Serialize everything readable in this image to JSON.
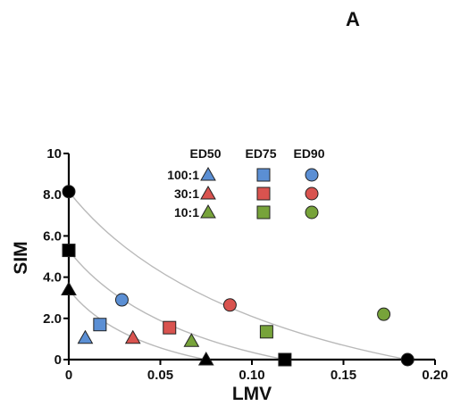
{
  "panel_label": "A",
  "chart_data": {
    "type": "scatter",
    "xlabel": "LMV",
    "ylabel": "SIM",
    "xlim": [
      0,
      0.2
    ],
    "ylim": [
      0,
      10
    ],
    "x_ticks": [
      0,
      0.05,
      0.1,
      0.15,
      0.2
    ],
    "x_tick_labels": [
      "0",
      "0.05",
      "0.10",
      "0.15",
      "0.20"
    ],
    "y_ticks": [
      0,
      2,
      4,
      6,
      8,
      10
    ],
    "y_tick_labels": [
      "0",
      "2.0",
      "4.0",
      "6.0",
      "8.0",
      "10"
    ],
    "grid": false,
    "legend": {
      "placement": "top-center",
      "column_headers": [
        "ED50",
        "ED75",
        "ED90"
      ],
      "row_labels": [
        "100:1",
        "30:1",
        "10:1"
      ]
    },
    "colors": {
      "100:1": "#5b8fd4",
      "30:1": "#d9534f",
      "10:1": "#77a33a",
      "isobole": "#b9b9b9"
    },
    "markers": {
      "ED50": "triangle",
      "ED75": "square",
      "ED90": "circle"
    },
    "series": [
      {
        "name": "100:1",
        "effect": "ED50",
        "x": 0.009,
        "y": 1.05
      },
      {
        "name": "100:1",
        "effect": "ED75",
        "x": 0.017,
        "y": 1.7
      },
      {
        "name": "100:1",
        "effect": "ED90",
        "x": 0.029,
        "y": 2.9
      },
      {
        "name": "30:1",
        "effect": "ED50",
        "x": 0.035,
        "y": 1.05
      },
      {
        "name": "30:1",
        "effect": "ED75",
        "x": 0.055,
        "y": 1.55
      },
      {
        "name": "30:1",
        "effect": "ED90",
        "x": 0.088,
        "y": 2.65
      },
      {
        "name": "10:1",
        "effect": "ED50",
        "x": 0.067,
        "y": 0.9
      },
      {
        "name": "10:1",
        "effect": "ED75",
        "x": 0.108,
        "y": 1.35
      },
      {
        "name": "10:1",
        "effect": "ED90",
        "x": 0.172,
        "y": 2.2
      }
    ],
    "single_agent_points": [
      {
        "effect": "ED50",
        "marker": "triangle",
        "x": 0,
        "y": 3.4
      },
      {
        "effect": "ED50",
        "marker": "triangle",
        "x": 0.075,
        "y": 0
      },
      {
        "effect": "ED75",
        "marker": "square",
        "x": 0,
        "y": 5.3
      },
      {
        "effect": "ED75",
        "marker": "square",
        "x": 0.118,
        "y": 0
      },
      {
        "effect": "ED90",
        "marker": "circle",
        "x": 0,
        "y": 8.15
      },
      {
        "effect": "ED90",
        "marker": "circle",
        "x": 0.185,
        "y": 0
      }
    ],
    "isoboles": [
      {
        "effect": "ED50",
        "from": [
          0,
          3.4
        ],
        "to": [
          0.075,
          0
        ]
      },
      {
        "effect": "ED75",
        "from": [
          0,
          5.3
        ],
        "to": [
          0.118,
          0
        ]
      },
      {
        "effect": "ED90",
        "from": [
          0,
          8.15
        ],
        "to": [
          0.185,
          0
        ]
      }
    ]
  }
}
